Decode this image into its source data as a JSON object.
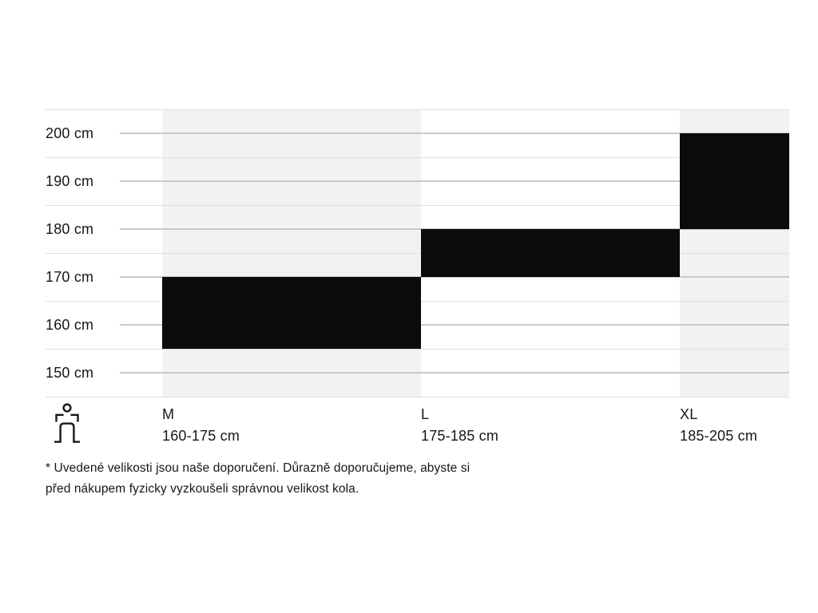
{
  "chart_data": {
    "type": "bar",
    "subtype": "vertical-range-bars",
    "title": "",
    "y_axis": {
      "unit": "cm",
      "ticks": [
        200,
        190,
        180,
        170,
        160,
        150
      ],
      "tick_labels": [
        "200 cm",
        "190 cm",
        "180 cm",
        "170 cm",
        "160 cm",
        "150 cm"
      ],
      "range_cm": [
        150,
        210
      ],
      "grid_step_cm": 5,
      "grid": "on"
    },
    "series": [
      {
        "size": "M",
        "height_range_cm": [
          160,
          175
        ],
        "range_label": "160-175 cm"
      },
      {
        "size": "L",
        "height_range_cm": [
          175,
          185
        ],
        "range_label": "175-185 cm"
      },
      {
        "size": "XL",
        "height_range_cm": [
          185,
          205
        ],
        "range_label": "185-205 cm"
      }
    ],
    "legend_icon": "person-height-icon"
  },
  "footnote": {
    "lines": [
      "* Uvedené velikosti jsou naše doporučení. Důrazně doporučujeme, abyste si",
      "před nákupem fyzicky vyzkoušeli správnou velikost kola."
    ]
  },
  "colors": {
    "bar": "#0b0b0b",
    "column_bg": "#f2f2f2",
    "gridline": "#dedede",
    "tick_line": "#c9c9c9",
    "text": "#161616",
    "background": "#ffffff"
  }
}
